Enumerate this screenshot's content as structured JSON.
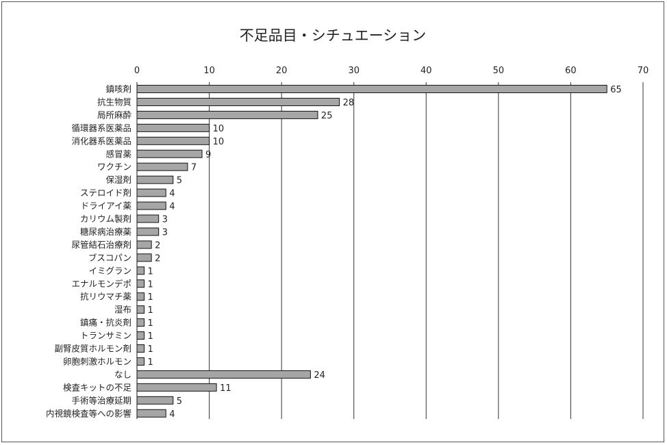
{
  "chart_data": {
    "type": "bar",
    "orientation": "horizontal",
    "title": "不足品目・シチュエーション",
    "xlabel": "",
    "ylabel": "",
    "xlim": [
      0,
      70
    ],
    "xticks": [
      0,
      10,
      20,
      30,
      40,
      50,
      60,
      70
    ],
    "grid": "vertical",
    "legend": "none",
    "bar_color": "#a6a6a6",
    "bar_edge_color": "#111111",
    "categories": [
      "鎮咳剤",
      "抗生物質",
      "局所麻酔",
      "循環器系医薬品",
      "消化器系医薬品",
      "感冒薬",
      "ワクチン",
      "保湿剤",
      "ステロイド剤",
      "ドライアイ薬",
      "カリウム製剤",
      "糖尿病治療薬",
      "尿管結石治療剤",
      "ブスコパン",
      "イミグラン",
      "エナルモンデポ",
      "抗リウマチ薬",
      "湿布",
      "鎮痛・抗炎剤",
      "トランサミン",
      "副腎皮質ホルモン剤",
      "卵胞刺激ホルモン",
      "なし",
      "検査キットの不足",
      "手術等治療延期",
      "内視鏡検査等への影響"
    ],
    "values": [
      65,
      28,
      25,
      10,
      10,
      9,
      7,
      5,
      4,
      4,
      3,
      3,
      2,
      2,
      1,
      1,
      1,
      1,
      1,
      1,
      1,
      1,
      24,
      11,
      5,
      4
    ]
  }
}
